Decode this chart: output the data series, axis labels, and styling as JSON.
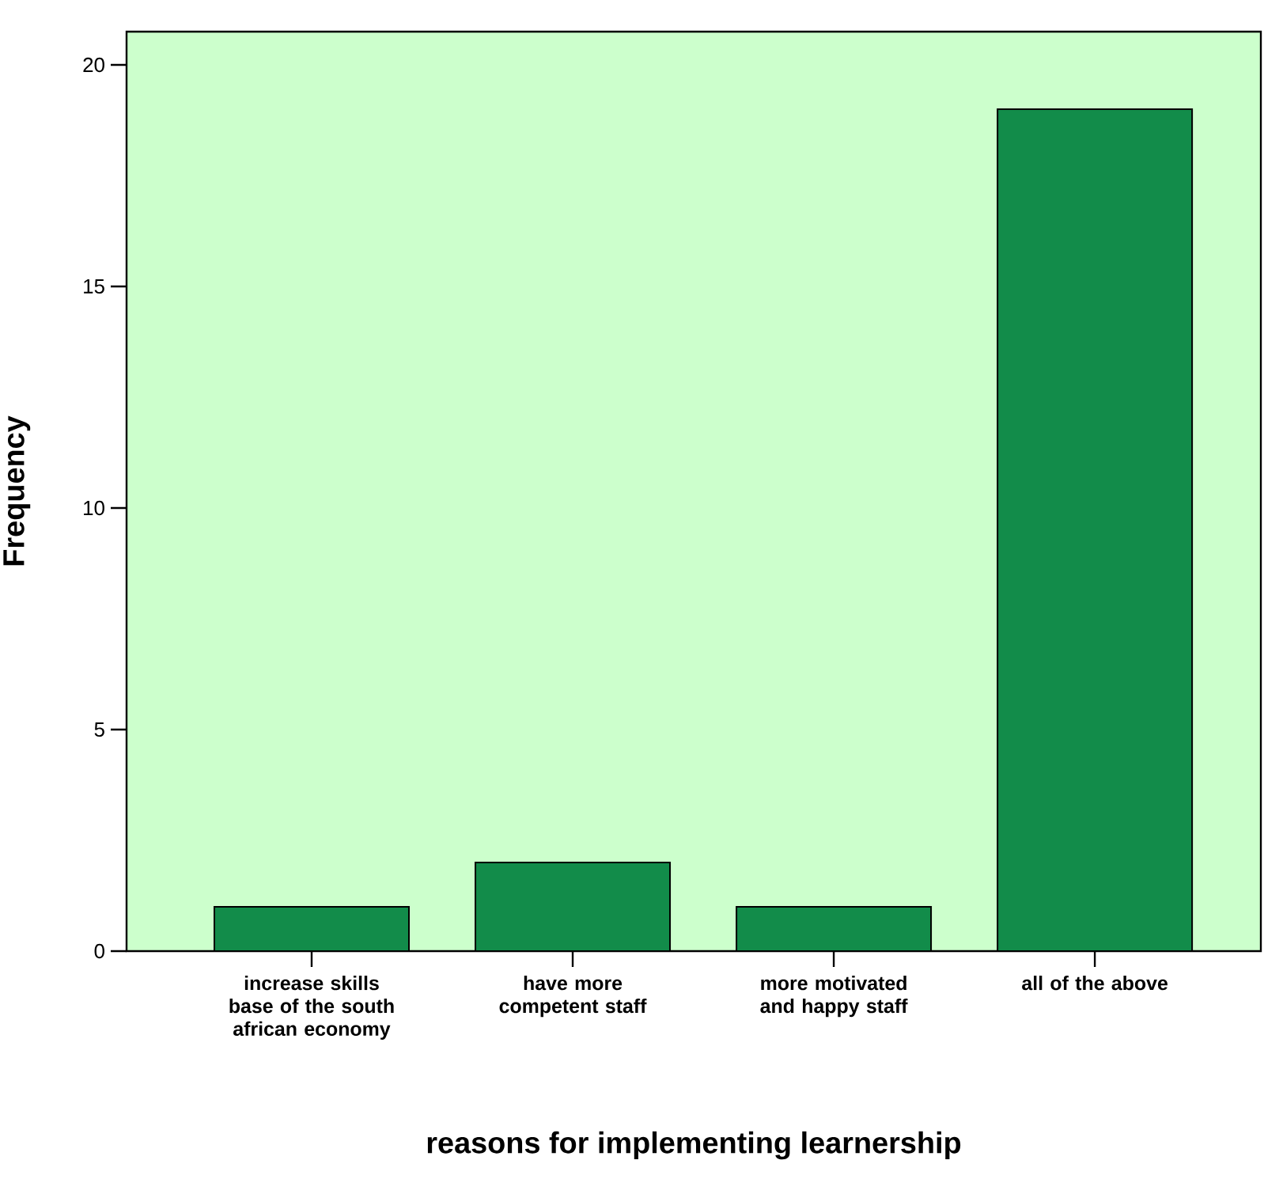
{
  "chart_data": {
    "type": "bar",
    "xlabel": "reasons for implementing learnership",
    "ylabel": "Frequency",
    "categories": [
      "increase skills base of the south african economy",
      "have more competent staff",
      "more motivated and happy staff",
      "all of the above"
    ],
    "values": [
      1,
      2,
      1,
      19
    ],
    "color": "#128c4a",
    "ylim": [
      0,
      20.75
    ],
    "yticks": [
      0,
      5,
      10,
      15,
      20
    ]
  }
}
